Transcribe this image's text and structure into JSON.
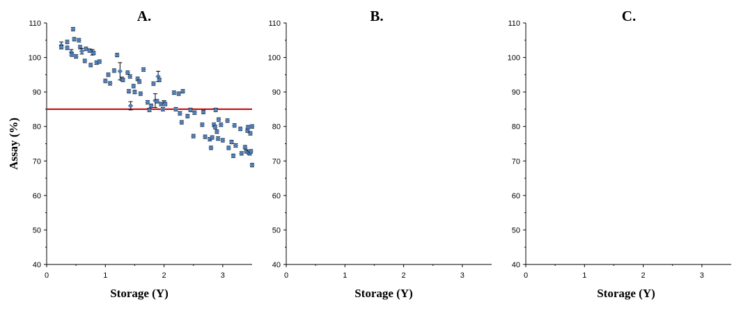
{
  "chart_data": [
    {
      "type": "scatter",
      "title": "A.",
      "xlabel": "Storage (Y)",
      "ylabel": "Assay (%)",
      "xlim": [
        0,
        3.5
      ],
      "ylim": [
        40,
        110
      ],
      "xticks": [
        "0",
        "1",
        "2",
        "3"
      ],
      "yticks": [
        "40",
        "50",
        "60",
        "70",
        "80",
        "90",
        "100",
        "110"
      ],
      "reference_line": {
        "y": 85,
        "color": "#c00000"
      },
      "marker_color": "#4f81bd",
      "points": [
        {
          "x": 0.25,
          "y": 103.5,
          "e": 1.0
        },
        {
          "x": 0.25,
          "y": 103.0,
          "e": 0.5
        },
        {
          "x": 0.35,
          "y": 104.5,
          "e": 0.5
        },
        {
          "x": 0.35,
          "y": 102.8,
          "e": 0.5
        },
        {
          "x": 0.42,
          "y": 101.5,
          "e": 0.8
        },
        {
          "x": 0.43,
          "y": 100.8,
          "e": 0.5
        },
        {
          "x": 0.45,
          "y": 108.2,
          "e": 0.5
        },
        {
          "x": 0.47,
          "y": 105.3,
          "e": 0.5
        },
        {
          "x": 0.5,
          "y": 100.3,
          "e": 0.5
        },
        {
          "x": 0.55,
          "y": 105.0,
          "e": 0.5
        },
        {
          "x": 0.57,
          "y": 103.0,
          "e": 0.5
        },
        {
          "x": 0.6,
          "y": 101.8,
          "e": 0.8
        },
        {
          "x": 0.65,
          "y": 99.0,
          "e": 0.5
        },
        {
          "x": 0.67,
          "y": 102.5,
          "e": 0.5
        },
        {
          "x": 0.73,
          "y": 102.0,
          "e": 0.5
        },
        {
          "x": 0.75,
          "y": 97.8,
          "e": 0.5
        },
        {
          "x": 0.78,
          "y": 101.5,
          "e": 0.8
        },
        {
          "x": 0.8,
          "y": 101.3,
          "e": 0.5
        },
        {
          "x": 0.85,
          "y": 98.5,
          "e": 0.5
        },
        {
          "x": 0.9,
          "y": 98.8,
          "e": 0.5
        },
        {
          "x": 1.0,
          "y": 93.2,
          "e": 0.5
        },
        {
          "x": 1.05,
          "y": 95.0,
          "e": 0.5
        },
        {
          "x": 1.08,
          "y": 92.5,
          "e": 0.5
        },
        {
          "x": 1.15,
          "y": 96.2,
          "e": 0.5
        },
        {
          "x": 1.2,
          "y": 100.7,
          "e": 0.5
        },
        {
          "x": 1.25,
          "y": 96.0,
          "e": 2.5
        },
        {
          "x": 1.28,
          "y": 93.8,
          "e": 0.5
        },
        {
          "x": 1.3,
          "y": 93.5,
          "e": 0.5
        },
        {
          "x": 1.38,
          "y": 95.6,
          "e": 0.5
        },
        {
          "x": 1.4,
          "y": 90.2,
          "e": 0.5
        },
        {
          "x": 1.42,
          "y": 94.5,
          "e": 0.5
        },
        {
          "x": 1.43,
          "y": 86.0,
          "e": 1.2
        },
        {
          "x": 1.48,
          "y": 91.7,
          "e": 0.5
        },
        {
          "x": 1.5,
          "y": 90.0,
          "e": 0.5
        },
        {
          "x": 1.55,
          "y": 93.8,
          "e": 0.5
        },
        {
          "x": 1.58,
          "y": 93.0,
          "e": 0.5
        },
        {
          "x": 1.6,
          "y": 89.5,
          "e": 0.5
        },
        {
          "x": 1.65,
          "y": 96.5,
          "e": 0.5
        },
        {
          "x": 1.72,
          "y": 87.0,
          "e": 0.5
        },
        {
          "x": 1.75,
          "y": 84.8,
          "e": 0.5
        },
        {
          "x": 1.78,
          "y": 86.0,
          "e": 0.5
        },
        {
          "x": 1.82,
          "y": 92.4,
          "e": 0.5
        },
        {
          "x": 1.85,
          "y": 87.5,
          "e": 2.0
        },
        {
          "x": 1.88,
          "y": 87.3,
          "e": 0.5
        },
        {
          "x": 1.9,
          "y": 94.5,
          "e": 1.5
        },
        {
          "x": 1.92,
          "y": 93.5,
          "e": 0.5
        },
        {
          "x": 1.95,
          "y": 86.5,
          "e": 0.5
        },
        {
          "x": 1.98,
          "y": 85.0,
          "e": 0.5
        },
        {
          "x": 2.0,
          "y": 87.0,
          "e": 0.5
        },
        {
          "x": 2.02,
          "y": 86.5,
          "e": 0.5
        },
        {
          "x": 2.17,
          "y": 89.8,
          "e": 0.5
        },
        {
          "x": 2.2,
          "y": 85.0,
          "e": 0.5
        },
        {
          "x": 2.25,
          "y": 89.5,
          "e": 0.5
        },
        {
          "x": 2.27,
          "y": 83.8,
          "e": 0.5
        },
        {
          "x": 2.3,
          "y": 81.2,
          "e": 0.5
        },
        {
          "x": 2.32,
          "y": 90.2,
          "e": 0.5
        },
        {
          "x": 2.4,
          "y": 83.0,
          "e": 0.5
        },
        {
          "x": 2.45,
          "y": 84.8,
          "e": 0.5
        },
        {
          "x": 2.5,
          "y": 77.2,
          "e": 0.5
        },
        {
          "x": 2.52,
          "y": 84.0,
          "e": 0.5
        },
        {
          "x": 2.65,
          "y": 80.5,
          "e": 0.5
        },
        {
          "x": 2.67,
          "y": 84.2,
          "e": 0.5
        },
        {
          "x": 2.7,
          "y": 77.0,
          "e": 0.5
        },
        {
          "x": 2.78,
          "y": 76.3,
          "e": 0.5
        },
        {
          "x": 2.8,
          "y": 73.8,
          "e": 0.5
        },
        {
          "x": 2.82,
          "y": 76.8,
          "e": 0.5
        },
        {
          "x": 2.85,
          "y": 80.5,
          "e": 0.5
        },
        {
          "x": 2.87,
          "y": 79.8,
          "e": 0.5
        },
        {
          "x": 2.88,
          "y": 84.8,
          "e": 0.5
        },
        {
          "x": 2.9,
          "y": 78.5,
          "e": 0.5
        },
        {
          "x": 2.92,
          "y": 76.5,
          "e": 0.5
        },
        {
          "x": 2.93,
          "y": 82.0,
          "e": 0.5
        },
        {
          "x": 2.97,
          "y": 80.5,
          "e": 0.5
        },
        {
          "x": 3.0,
          "y": 76.0,
          "e": 0.5
        },
        {
          "x": 3.08,
          "y": 81.7,
          "e": 0.5
        },
        {
          "x": 3.1,
          "y": 73.8,
          "e": 0.5
        },
        {
          "x": 3.15,
          "y": 75.5,
          "e": 0.5
        },
        {
          "x": 3.18,
          "y": 71.5,
          "e": 0.5
        },
        {
          "x": 3.2,
          "y": 80.3,
          "e": 0.5
        },
        {
          "x": 3.22,
          "y": 74.5,
          "e": 0.5
        },
        {
          "x": 3.3,
          "y": 79.3,
          "e": 0.5
        },
        {
          "x": 3.32,
          "y": 72.2,
          "e": 0.5
        },
        {
          "x": 3.38,
          "y": 74.0,
          "e": 0.5
        },
        {
          "x": 3.4,
          "y": 72.8,
          "e": 0.5
        },
        {
          "x": 3.42,
          "y": 78.8,
          "e": 0.5
        },
        {
          "x": 3.43,
          "y": 79.8,
          "e": 0.5
        },
        {
          "x": 3.44,
          "y": 72.5,
          "e": 0.5
        },
        {
          "x": 3.46,
          "y": 72.2,
          "e": 0.5
        },
        {
          "x": 3.47,
          "y": 78.0,
          "e": 0.5
        },
        {
          "x": 3.48,
          "y": 72.8,
          "e": 0.5
        },
        {
          "x": 3.5,
          "y": 80.0,
          "e": 0.5
        },
        {
          "x": 3.5,
          "y": 68.8,
          "e": 0.5
        }
      ]
    },
    {
      "type": "scatter",
      "title": "B.",
      "xlabel": "Storage (Y)",
      "ylabel": "",
      "xlim": [
        0,
        3.5
      ],
      "ylim": [
        40,
        110
      ],
      "xticks": [
        "0",
        "1",
        "2",
        "3"
      ],
      "yticks": [
        "40",
        "50",
        "60",
        "70",
        "80",
        "90",
        "100",
        "110"
      ],
      "points": []
    },
    {
      "type": "scatter",
      "title": "C.",
      "xlabel": "Storage (Y)",
      "ylabel": "",
      "xlim": [
        0,
        3.5
      ],
      "ylim": [
        40,
        110
      ],
      "xticks": [
        "0",
        "1",
        "2",
        "3"
      ],
      "yticks": [
        "40",
        "50",
        "60",
        "70",
        "80",
        "90",
        "100",
        "110"
      ],
      "points": []
    }
  ]
}
